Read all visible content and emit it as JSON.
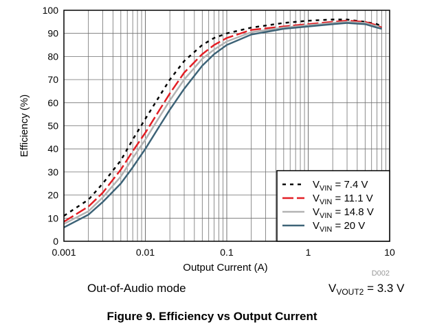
{
  "chart_data": {
    "type": "line",
    "title": "",
    "xlabel": "Output Current (A)",
    "ylabel": "Efficiency (%)",
    "x_scale": "log",
    "xlim": [
      0.001,
      10
    ],
    "ylim": [
      0,
      100
    ],
    "x_ticks": [
      "0.001",
      "0.01",
      "0.1",
      "1",
      "10"
    ],
    "y_ticks": [
      "0",
      "10",
      "20",
      "30",
      "40",
      "50",
      "60",
      "70",
      "80",
      "90",
      "100"
    ],
    "grid": true,
    "legend_position": "bottom-right",
    "series": [
      {
        "name_prefix": "V",
        "name_sub": "VIN",
        "name_suffix": " = 7.4 V",
        "color": "#000000",
        "style": "dotted",
        "x": [
          0.001,
          0.002,
          0.003,
          0.005,
          0.007,
          0.01,
          0.015,
          0.02,
          0.03,
          0.05,
          0.07,
          0.1,
          0.2,
          0.5,
          1,
          2,
          3,
          5,
          7,
          8
        ],
        "y": [
          11,
          18,
          25,
          35,
          44,
          53,
          63,
          70,
          78,
          85,
          88,
          90,
          92.5,
          94.5,
          95.5,
          96,
          96,
          95,
          94,
          93
        ]
      },
      {
        "name_prefix": "V",
        "name_sub": "VIN",
        "name_suffix": " = 11.1 V",
        "color": "#e31e24",
        "style": "dashed",
        "x": [
          0.001,
          0.002,
          0.003,
          0.005,
          0.007,
          0.01,
          0.015,
          0.02,
          0.03,
          0.05,
          0.07,
          0.1,
          0.2,
          0.5,
          1,
          2,
          3,
          5,
          7,
          8
        ],
        "y": [
          8.5,
          15,
          21,
          31,
          39,
          47,
          57,
          64,
          73,
          81,
          85,
          88,
          91.5,
          93,
          94,
          95,
          95.5,
          95,
          93.5,
          92.5
        ]
      },
      {
        "name_prefix": "V",
        "name_sub": "VIN",
        "name_suffix": " = 14.8 V",
        "color": "#b3b3b3",
        "style": "solid",
        "x": [
          0.001,
          0.002,
          0.003,
          0.005,
          0.007,
          0.01,
          0.015,
          0.02,
          0.03,
          0.05,
          0.07,
          0.1,
          0.2,
          0.5,
          1,
          2,
          3,
          5,
          7,
          8
        ],
        "y": [
          7.5,
          13,
          19,
          28,
          36,
          44,
          54,
          61,
          70,
          79,
          83,
          86.5,
          90.5,
          92.5,
          93.5,
          94.5,
          95,
          94.5,
          93,
          92
        ]
      },
      {
        "name_prefix": "V",
        "name_sub": "VIN",
        "name_suffix": " = 20 V",
        "color": "#3d6377",
        "style": "solid",
        "x": [
          0.001,
          0.002,
          0.003,
          0.005,
          0.007,
          0.01,
          0.015,
          0.02,
          0.03,
          0.05,
          0.07,
          0.1,
          0.2,
          0.5,
          1,
          2,
          3,
          5,
          7,
          8
        ],
        "y": [
          6,
          11.5,
          17,
          25,
          32,
          40,
          50,
          57,
          66,
          76,
          81,
          85,
          89.5,
          92,
          93,
          94,
          94.5,
          94,
          92.5,
          92
        ]
      }
    ],
    "annotations": [
      "D002"
    ]
  },
  "notes": {
    "mode": "Out-of-Audio mode",
    "vout_prefix": "V",
    "vout_sub": "VOUT2",
    "vout_suffix": " = 3.3 V"
  },
  "caption": "Figure 9. Efficiency vs Output Current"
}
